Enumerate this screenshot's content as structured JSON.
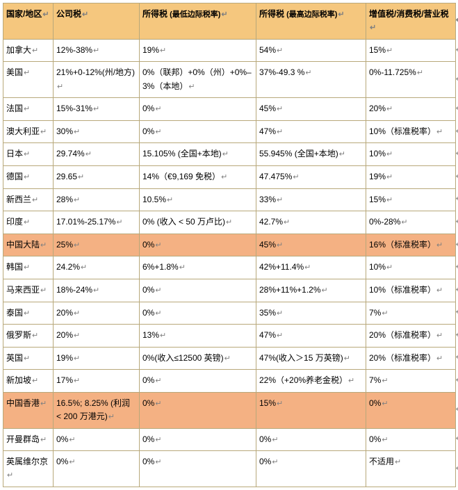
{
  "colors": {
    "header_bg": "#f5c77e",
    "highlight_bg": "#f4b183",
    "border": "#b8a87a",
    "text": "#000000",
    "mark": "#808080"
  },
  "para_mark": "↵",
  "row_mark": "↵",
  "columns": [
    {
      "key": "c0",
      "label": "国家/地区",
      "width": "col0"
    },
    {
      "key": "c1",
      "label": "公司税",
      "width": "col1"
    },
    {
      "key": "c2",
      "label": "所得税 (最低边际税率)",
      "width": "col2",
      "sub": "(最低边际税率)"
    },
    {
      "key": "c3",
      "label": "所得税 (最高边际税率)",
      "width": "col3",
      "sub": "(最高边际税率)"
    },
    {
      "key": "c4",
      "label": "增值税/消费税/营业税",
      "width": "col4"
    }
  ],
  "header_labels": {
    "c0": "国家/地区",
    "c1": "公司税",
    "c2_main": "所得税",
    "c2_sub": " (最低边际税率)",
    "c3_main": "所得税",
    "c3_sub": " (最高边际税率)",
    "c4": "增值税/消费税/营业税"
  },
  "rows": [
    {
      "c0": "加拿大",
      "c1": "12%-38%",
      "c2": "19%",
      "c3": "54%",
      "c4": "15%",
      "hl": false
    },
    {
      "c0": "美国",
      "c1": "21%+0-12%(州/地方)",
      "c2": "0%（联邦）+0%（州）+0%–3%（本地）",
      "c3": "37%-49.3 %",
      "c4": "0%-11.725%",
      "hl": false,
      "tall": true
    },
    {
      "c0": "法国",
      "c1": "15%-31%",
      "c2": "0%",
      "c3": "45%",
      "c4": "20%",
      "hl": false
    },
    {
      "c0": "澳大利亚",
      "c1": "30%",
      "c2": "0%",
      "c3": "47%",
      "c4": "10%（标准税率）",
      "hl": false
    },
    {
      "c0": "日本",
      "c1": "29.74%",
      "c2": "15.105% (全国+本地)",
      "c3": "55.945% (全国+本地)",
      "c4": "10%",
      "hl": false
    },
    {
      "c0": "德国",
      "c1": "29.65",
      "c2": "14%（€9,169 免税）",
      "c3": "47.475%",
      "c4": "19%",
      "hl": false
    },
    {
      "c0": "新西兰",
      "c1": "28%",
      "c2": "10.5%",
      "c3": "33%",
      "c4": "15%",
      "hl": false
    },
    {
      "c0": "印度",
      "c1": "17.01%-25.17%",
      "c2": "0% (收入 < 50 万卢比)",
      "c3": "42.7%",
      "c4": "0%-28%",
      "hl": false
    },
    {
      "c0": "中国大陆",
      "c1": "25%",
      "c2": "0%",
      "c3": "45%",
      "c4": "16%（标准税率）",
      "hl": true
    },
    {
      "c0": "韩国",
      "c1": "24.2%",
      "c2": "6%+1.8%",
      "c3": "42%+11.4%",
      "c4": "10%",
      "hl": false
    },
    {
      "c0": "马来西亚",
      "c1": "18%-24%",
      "c2": "0%",
      "c3": "28%+11%+1.2%",
      "c4": "10%（标准税率）",
      "hl": false
    },
    {
      "c0": "泰国",
      "c1": "20%",
      "c2": "0%",
      "c3": "35%",
      "c4": "7%",
      "hl": false
    },
    {
      "c0": "俄罗斯",
      "c1": "20%",
      "c2": "13%",
      "c3": "47%",
      "c4": "20%（标准税率）",
      "hl": false
    },
    {
      "c0": "英国",
      "c1": "19%",
      "c2": "0%(收入≤12500 英镑)",
      "c3": "47%(收入＞15 万英镑)",
      "c4": "20%（标准税率）",
      "hl": false
    },
    {
      "c0": "新加坡",
      "c1": "17%",
      "c2": "0%",
      "c3": "22%（+20%养老金税）",
      "c4": "7%",
      "hl": false
    },
    {
      "c0": "中国香港",
      "c1": "16.5%; 8.25% (利润 < 200 万港元)",
      "c2": "0%",
      "c3": "15%",
      "c4": "0%",
      "hl": true,
      "tall": true
    },
    {
      "c0": "开曼群岛",
      "c1": "0%",
      "c2": "0%",
      "c3": "0%",
      "c4": "0%",
      "hl": false
    },
    {
      "c0": "英属维尔京",
      "c1": "0%",
      "c2": "0%",
      "c3": "0%",
      "c4": "不适用",
      "hl": false
    }
  ]
}
